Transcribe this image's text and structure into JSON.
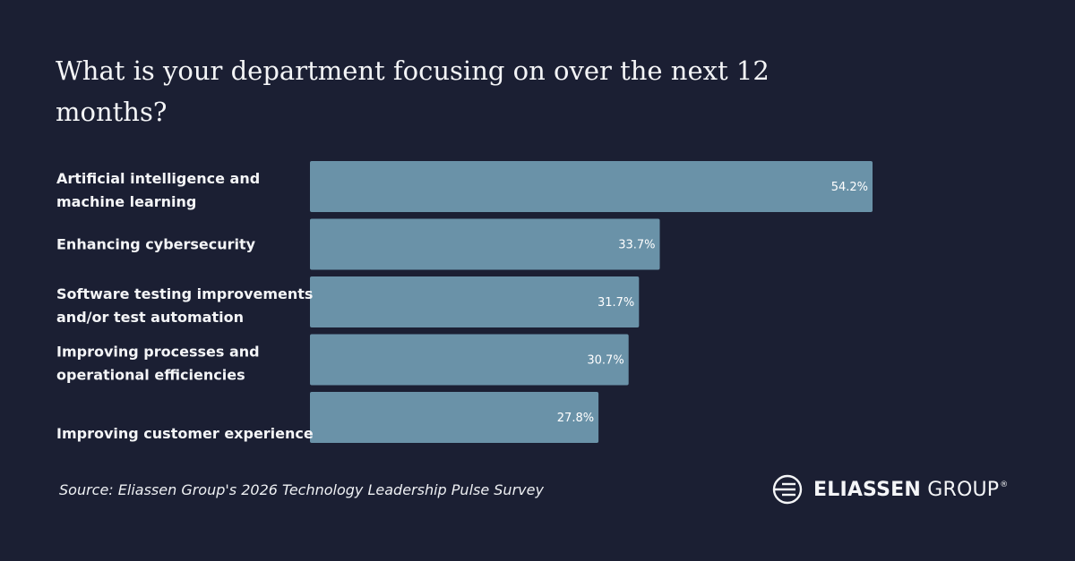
{
  "chart_data": {
    "type": "bar",
    "orientation": "horizontal",
    "title": "What is your department focusing on over the next 12 months?",
    "categories": [
      [
        "Artificial intelligence and",
        "machine learning"
      ],
      [
        "Enhancing cybersecurity"
      ],
      [
        "Software testing improvements",
        "and/or test automation"
      ],
      [
        "Improving processes and",
        "operational efficiencies"
      ],
      [
        "Improving customer experience"
      ]
    ],
    "values": [
      54.2,
      33.7,
      31.7,
      30.7,
      27.8
    ],
    "value_labels": [
      "54.2%",
      "33.7%",
      "31.7%",
      "30.7%",
      "27.8%"
    ],
    "unit": "%",
    "xlim": [
      0,
      54.2
    ],
    "xlabel": "",
    "ylabel": "",
    "grid": false,
    "legend": "none"
  },
  "source": "Source: Eliassen Group's 2026 Technology Leadership Pulse Survey",
  "logo": {
    "bold_word": "ELIASSEN",
    "light_word": "GROUP",
    "mark": "®"
  },
  "colors": {
    "background": "#1b1f33",
    "bar": "#6a92a8",
    "text": "#f4f5f7"
  }
}
